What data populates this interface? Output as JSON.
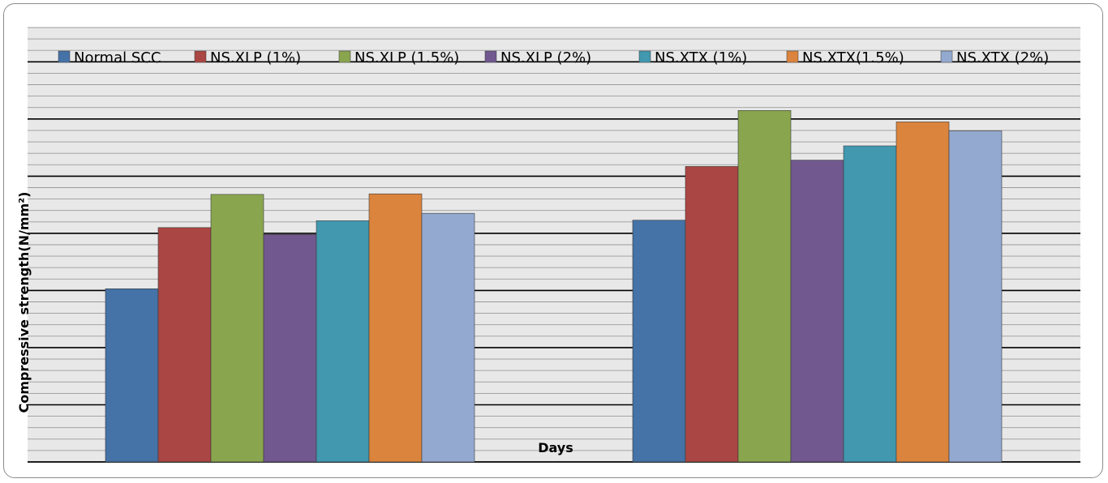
{
  "chart_data": {
    "type": "bar",
    "title": "",
    "xlabel": "Days",
    "ylabel": "Compressive strength(N/mm²)",
    "ylim": [
      0,
      7.6
    ],
    "y_major_step": 1,
    "y_minor_step": 0.2,
    "grid": true,
    "legend_position": "top",
    "categories": [
      "",
      ""
    ],
    "series": [
      {
        "name": "Normal SCC",
        "color": "#4572a7",
        "values": [
          3.03,
          4.23
        ]
      },
      {
        "name": "NS.XLP (1%)",
        "color": "#aa4643",
        "values": [
          4.1,
          5.17
        ]
      },
      {
        "name": "NS.XLP (1.5%)",
        "color": "#89a54e",
        "values": [
          4.68,
          6.15
        ]
      },
      {
        "name": "NS.XLP (2%)",
        "color": "#71588f",
        "values": [
          3.98,
          5.28
        ]
      },
      {
        "name": "NS.XTX (1%)",
        "color": "#4198af",
        "values": [
          4.22,
          5.53
        ]
      },
      {
        "name": "NS.XTX(1.5%)",
        "color": "#db843d",
        "values": [
          4.69,
          5.95
        ]
      },
      {
        "name": "NS.XTX (2%)",
        "color": "#93a9cf",
        "values": [
          4.35,
          5.79
        ]
      }
    ]
  }
}
